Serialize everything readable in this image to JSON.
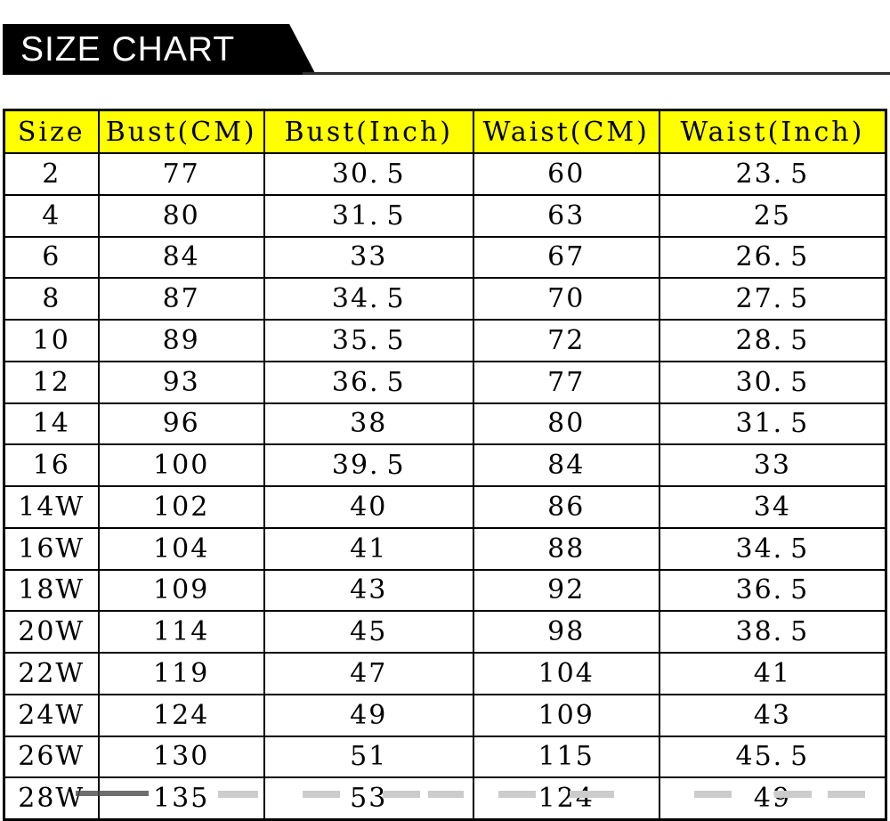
{
  "banner": {
    "title": "SIZE CHART",
    "background_color": "#000000",
    "text_color": "#ffffff"
  },
  "table": {
    "header_background": "#ffff00",
    "border_color": "#000000",
    "columns": [
      "Size",
      "Bust(CM)",
      "Bust(Inch)",
      "Waist(CM)",
      "Waist(Inch)"
    ],
    "rows": [
      [
        "2",
        "77",
        "30.5",
        "60",
        "23.5"
      ],
      [
        "4",
        "80",
        "31.5",
        "63",
        "25"
      ],
      [
        "6",
        "84",
        "33",
        "67",
        "26.5"
      ],
      [
        "8",
        "87",
        "34.5",
        "70",
        "27.5"
      ],
      [
        "10",
        "89",
        "35.5",
        "72",
        "28.5"
      ],
      [
        "12",
        "93",
        "36.5",
        "77",
        "30.5"
      ],
      [
        "14",
        "96",
        "38",
        "80",
        "31.5"
      ],
      [
        "16",
        "100",
        "39.5",
        "84",
        "33"
      ],
      [
        "14W",
        "102",
        "40",
        "86",
        "34"
      ],
      [
        "16W",
        "104",
        "41",
        "88",
        "34.5"
      ],
      [
        "18W",
        "109",
        "43",
        "92",
        "36.5"
      ],
      [
        "20W",
        "114",
        "45",
        "98",
        "38.5"
      ],
      [
        "22W",
        "119",
        "47",
        "104",
        "41"
      ],
      [
        "24W",
        "124",
        "49",
        "109",
        "43"
      ],
      [
        "26W",
        "130",
        "51",
        "115",
        "45.5"
      ],
      [
        "28W",
        "135",
        "53",
        "124",
        "49"
      ]
    ]
  },
  "chart_data": {
    "type": "table",
    "title": "SIZE CHART",
    "columns": [
      "Size",
      "Bust(CM)",
      "Bust(Inch)",
      "Waist(CM)",
      "Waist(Inch)"
    ],
    "rows": [
      [
        "2",
        77,
        30.5,
        60,
        23.5
      ],
      [
        "4",
        80,
        31.5,
        63,
        25
      ],
      [
        "6",
        84,
        33,
        67,
        26.5
      ],
      [
        "8",
        87,
        34.5,
        70,
        27.5
      ],
      [
        "10",
        89,
        35.5,
        72,
        28.5
      ],
      [
        "12",
        93,
        36.5,
        77,
        30.5
      ],
      [
        "14",
        96,
        38,
        80,
        31.5
      ],
      [
        "16",
        100,
        39.5,
        84,
        33
      ],
      [
        "14W",
        102,
        40,
        86,
        34
      ],
      [
        "16W",
        104,
        41,
        88,
        34.5
      ],
      [
        "18W",
        109,
        43,
        92,
        36.5
      ],
      [
        "20W",
        114,
        45,
        98,
        38.5
      ],
      [
        "22W",
        119,
        47,
        104,
        41
      ],
      [
        "24W",
        124,
        49,
        109,
        43
      ],
      [
        "26W",
        130,
        51,
        115,
        45.5
      ],
      [
        "28W",
        135,
        53,
        124,
        49
      ]
    ]
  }
}
